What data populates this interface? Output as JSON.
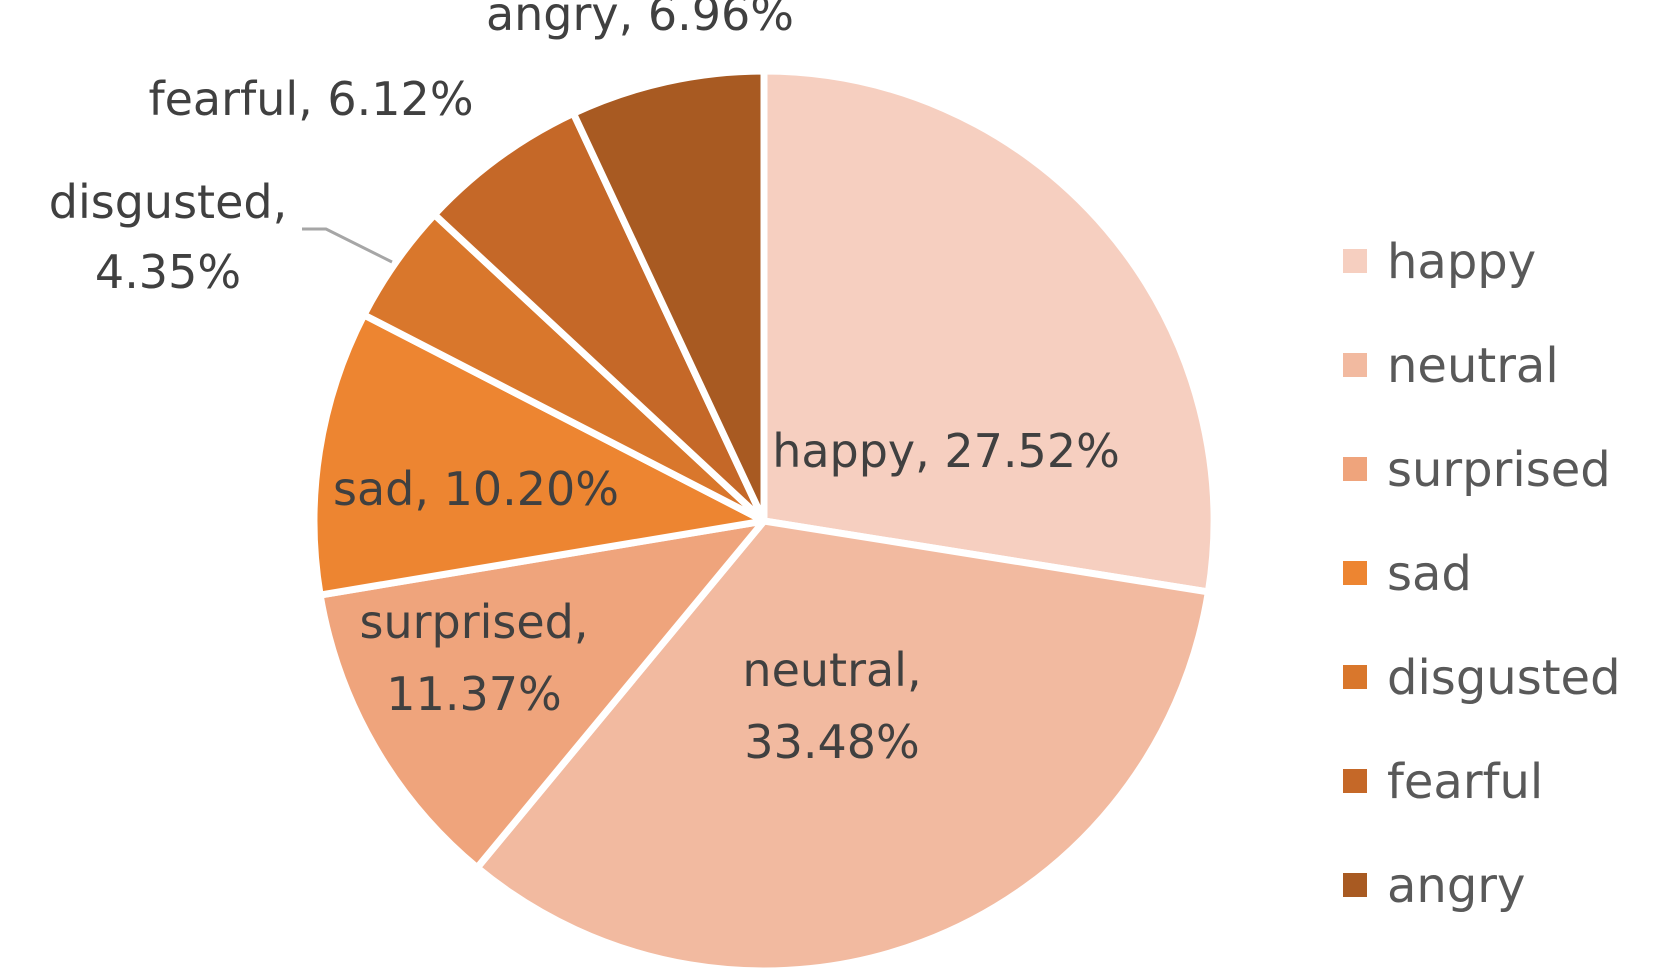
{
  "chart_data": {
    "type": "pie",
    "title": "",
    "start_angle_deg": 0,
    "direction": "clockwise",
    "slices": [
      {
        "label": "happy",
        "value": 27.52,
        "display": "27.52%",
        "color": "#F6CFC0"
      },
      {
        "label": "neutral",
        "value": 33.48,
        "display": "33.48%",
        "color": "#F2BAA0"
      },
      {
        "label": "surprised",
        "value": 11.37,
        "display": "11.37%",
        "color": "#EFA47C"
      },
      {
        "label": "sad",
        "value": 10.2,
        "display": "10.20%",
        "color": "#ED8531"
      },
      {
        "label": "disgusted",
        "value": 4.35,
        "display": "4.35%",
        "color": "#D9772C"
      },
      {
        "label": "fearful",
        "value": 6.12,
        "display": "6.12%",
        "color": "#C56828"
      },
      {
        "label": "angry",
        "value": 6.96,
        "display": "6.96%",
        "color": "#A85A22"
      }
    ],
    "legend": {
      "position": "right",
      "items": [
        "happy",
        "neutral",
        "surprised",
        "sad",
        "disgusted",
        "fearful",
        "angry"
      ]
    },
    "data_labels": {
      "show_category_name": true,
      "show_value": true,
      "separator": ", "
    }
  }
}
